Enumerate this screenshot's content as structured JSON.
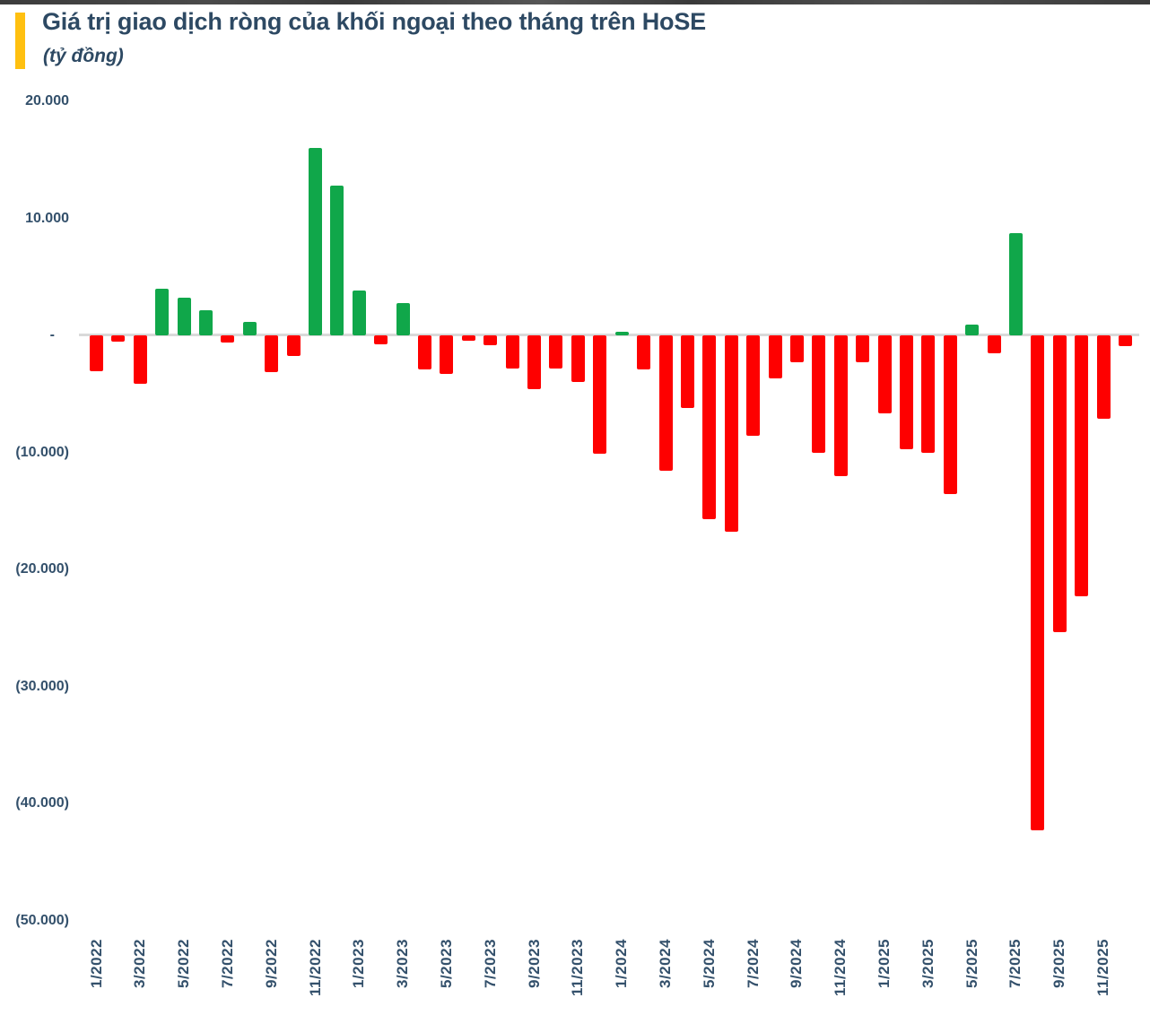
{
  "header": {
    "title": "Giá trị giao dịch ròng của khối ngoại theo tháng trên HoSE",
    "subtitle": "(tỷ đồng)"
  },
  "chart_data": {
    "type": "bar",
    "title": "Giá trị giao dịch ròng của khối ngoại theo tháng trên HoSE",
    "unit_label": "(tỷ đồng)",
    "grid": "off",
    "legend": "none",
    "categories": [
      "1/2022",
      "2/2022",
      "3/2022",
      "4/2022",
      "5/2022",
      "6/2022",
      "7/2022",
      "8/2022",
      "9/2022",
      "10/2022",
      "11/2022",
      "12/2022",
      "1/2023",
      "2/2023",
      "3/2023",
      "4/2023",
      "5/2023",
      "6/2023",
      "7/2023",
      "8/2023",
      "9/2023",
      "10/2023",
      "11/2023",
      "12/2023",
      "1/2024",
      "2/2024",
      "3/2024",
      "4/2024",
      "5/2024",
      "6/2024",
      "7/2024",
      "8/2024",
      "9/2024",
      "10/2024",
      "11/2024",
      "12/2024",
      "1/2025",
      "2/2025",
      "3/2025",
      "4/2025",
      "5/2025",
      "6/2025",
      "7/2025",
      "8/2025",
      "9/2025",
      "10/2025",
      "11/2025",
      "12/2025"
    ],
    "values": [
      -3100,
      -550,
      -4100,
      4000,
      3200,
      2150,
      -600,
      1150,
      -3150,
      -1750,
      16000,
      12800,
      3850,
      -800,
      2750,
      -2950,
      -3300,
      -450,
      -850,
      -2800,
      -4600,
      -2850,
      -4000,
      -10100,
      300,
      -2900,
      -11600,
      -6200,
      -15700,
      -16750,
      -8550,
      -3700,
      -2300,
      -10050,
      -12050,
      -2300,
      -6650,
      -9750,
      -10050,
      -13600,
      950,
      -1550,
      8750,
      -42300,
      -25400,
      -22300,
      -7100,
      -950
    ],
    "x_tick_every": 2,
    "x_tick_labels": [
      "1/2022",
      "3/2022",
      "5/2022",
      "7/2022",
      "9/2022",
      "11/2022",
      "1/2023",
      "3/2023",
      "5/2023",
      "7/2023",
      "9/2023",
      "11/2023",
      "1/2024",
      "3/2024",
      "5/2024",
      "7/2024",
      "9/2024",
      "11/2024",
      "1/2025",
      "3/2025",
      "5/2025",
      "7/2025",
      "9/2025",
      "11/2025"
    ],
    "y_axis": {
      "ylim": [
        -50000,
        20000
      ],
      "tick_values": [
        20000,
        10000,
        0,
        -10000,
        -20000,
        -30000,
        -40000,
        -50000
      ],
      "tick_labels": [
        "20.000",
        "10.000",
        "-",
        "(10.000)",
        "(20.000)",
        "(30.000)",
        "(40.000)",
        "(50.000)"
      ]
    },
    "colors": {
      "positive": "#10a74a",
      "negative": "#fe0000",
      "axis_line": "#d9d9d9",
      "text": "#33506b",
      "title_text": "#2d4963",
      "accent": "#ffc010"
    }
  }
}
